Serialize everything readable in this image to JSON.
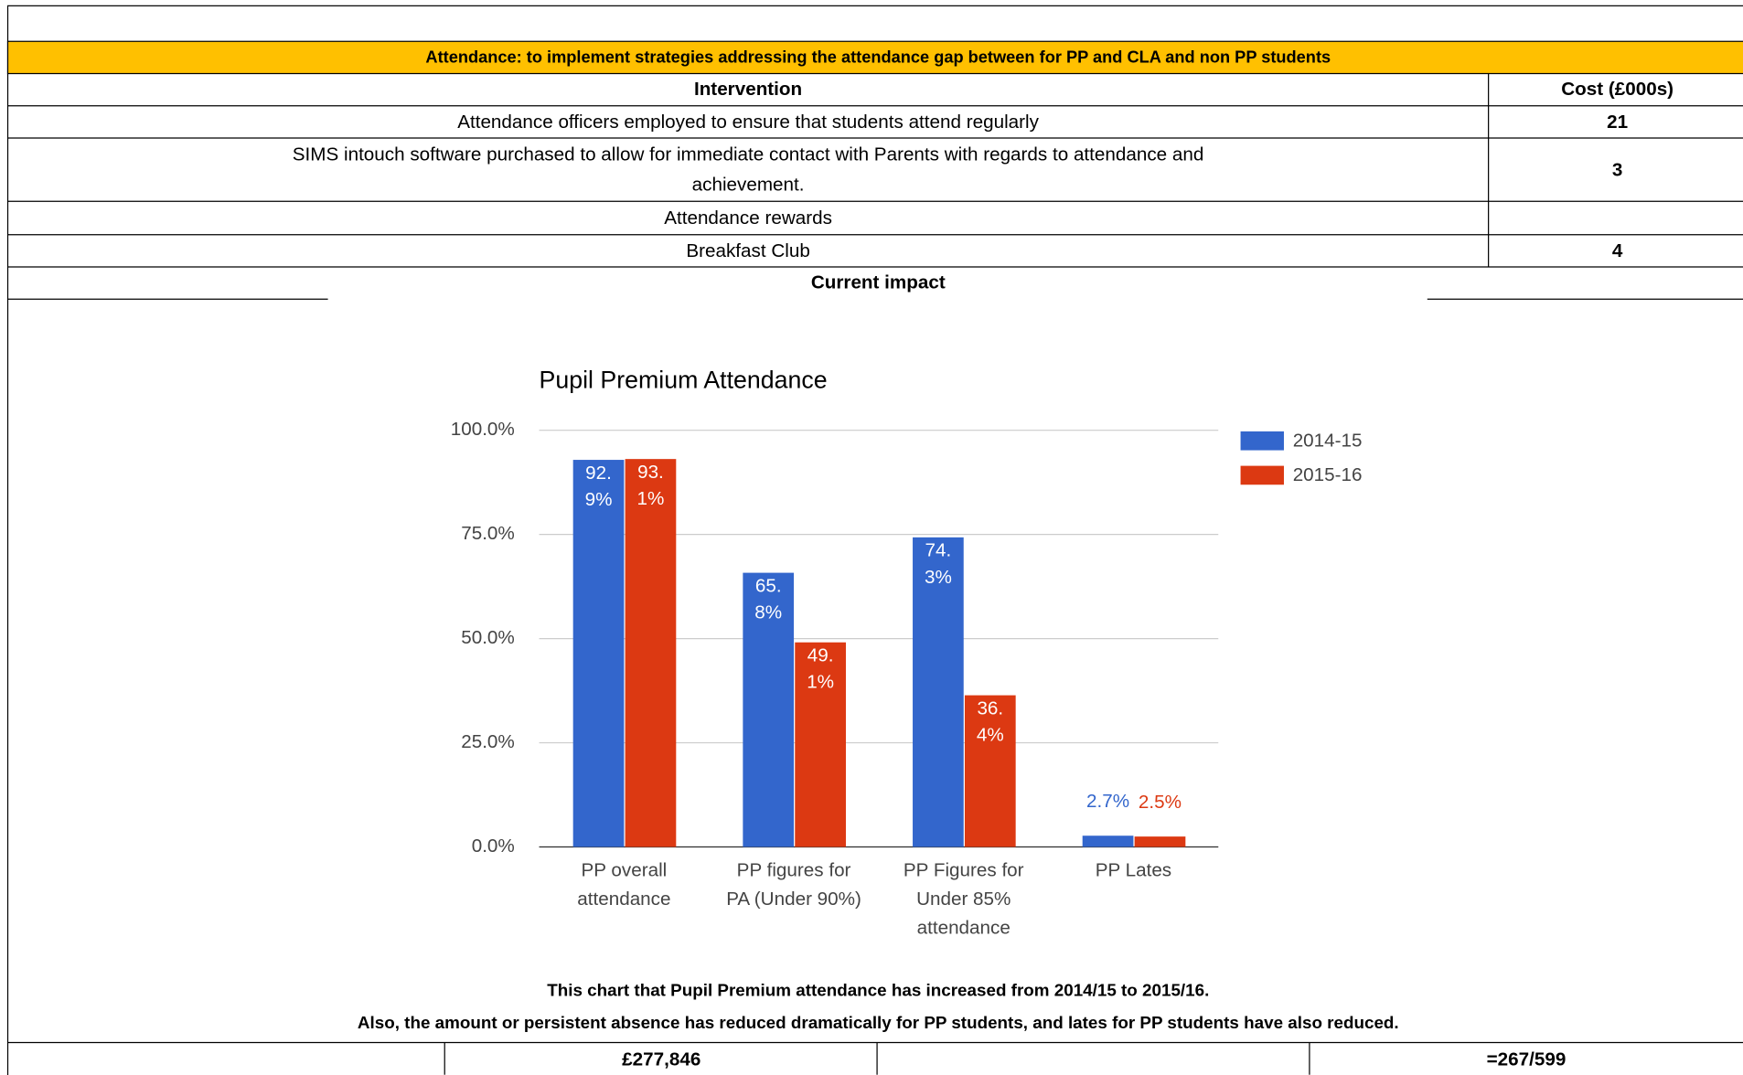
{
  "table": {
    "section_title": "Attendance: to implement strategies addressing the attendance gap between for PP and CLA  and non PP students",
    "header": [
      "Intervention",
      "Cost (£000s)"
    ],
    "rows": [
      [
        "Attendance officers employed to ensure that students attend regularly",
        "21"
      ],
      [
        "SIMS intouch software purchased to allow for immediate contact with Parents with regards to attendance and achievement.",
        "3"
      ],
      [
        "Attendance rewards"
      ],
      [
        "Breakfast Club",
        "4"
      ]
    ],
    "impact_heading": "Current impact",
    "notes": [
      "This chart that Pupil Premium attendance has increased from 2014/15 to 2015/16.",
      "Also, the amount or persistent absence has reduced dramatically for PP students, and lates for PP students have also reduced."
    ],
    "footer": [
      "£277,846",
      "=267/599"
    ]
  },
  "chart_data": {
    "type": "bar",
    "title": "Pupil Premium Attendance",
    "categories": [
      "PP overall attendance",
      "PP figures for PA (Under 90%)",
      "PP Figures for Under 85% attendance",
      "PP Lates"
    ],
    "series": [
      {
        "name": "2014-15",
        "color": "#3366cc",
        "values": [
          92.9,
          65.8,
          74.3,
          2.7
        ],
        "value_labels": [
          "92.9%",
          "65.8%",
          "74.3%",
          "2.7%"
        ]
      },
      {
        "name": "2015-16",
        "color": "#dc3912",
        "values": [
          93.1,
          49.1,
          36.4,
          2.5
        ],
        "value_labels": [
          "93.1%",
          "49.1%",
          "36.4%",
          "2.5%"
        ]
      }
    ],
    "ylim": [
      0,
      100
    ],
    "yticks": [
      {
        "value": 0,
        "label": "0.0%"
      },
      {
        "value": 25,
        "label": "25.0%"
      },
      {
        "value": 50,
        "label": "50.0%"
      },
      {
        "value": 75,
        "label": "75.0%"
      },
      {
        "value": 100,
        "label": "100.0%"
      }
    ],
    "grid": true,
    "legend": "right"
  }
}
